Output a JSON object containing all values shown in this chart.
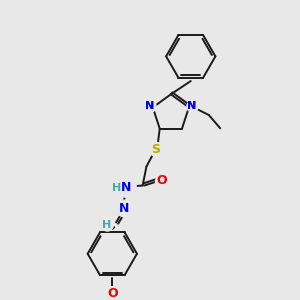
{
  "background_color": "#e8e8e8",
  "bond_color": "#1a1a1a",
  "N_color": "#0000ee",
  "O_color": "#ee0000",
  "S_color": "#bbaa00",
  "H_color": "#44aaaa",
  "figsize": [
    3.0,
    3.0
  ],
  "dpi": 100,
  "xlim": [
    0,
    300
  ],
  "ylim": [
    0,
    300
  ]
}
